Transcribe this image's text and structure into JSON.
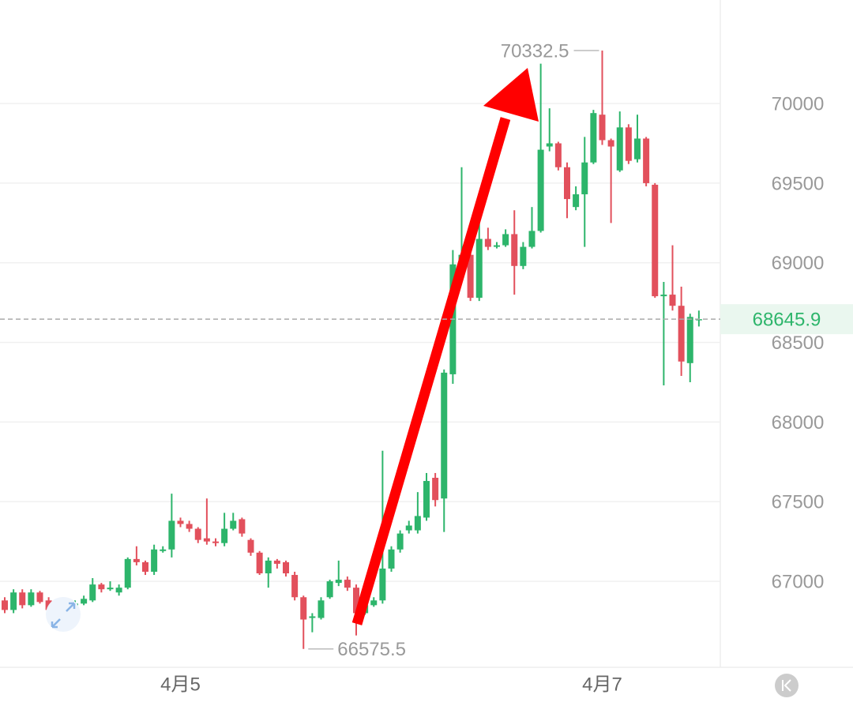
{
  "chart_data": {
    "type": "candlestick",
    "categories": [
      null,
      null,
      null,
      null,
      null,
      null,
      null,
      null,
      null,
      null,
      null,
      null,
      null,
      null,
      null,
      null,
      null,
      null,
      null,
      null,
      "4月5",
      null,
      null,
      null,
      null,
      null,
      null,
      null,
      null,
      null,
      null,
      null,
      null,
      null,
      null,
      null,
      null,
      null,
      null,
      null,
      null,
      null,
      null,
      null,
      null,
      null,
      null,
      null,
      null,
      null,
      null,
      null,
      null,
      null,
      null,
      null,
      null,
      null,
      null,
      null,
      null,
      null,
      null,
      null,
      null,
      null,
      null,
      null,
      "4月7",
      null,
      null,
      null,
      null,
      null,
      null,
      null,
      null,
      null,
      null,
      null
    ],
    "open": [
      66880,
      66820,
      66930,
      66850,
      66930,
      66880,
      66830,
      66810,
      66830,
      66860,
      66880,
      66980,
      66950,
      66930,
      66960,
      67140,
      67120,
      67060,
      67190,
      67200,
      67380,
      67360,
      67330,
      67270,
      67250,
      67240,
      67330,
      67390,
      67260,
      67180,
      67050,
      67130,
      67120,
      67040,
      66900,
      66770,
      66770,
      66900,
      66990,
      67010,
      66960,
      66800,
      66850,
      66880,
      67080,
      67200,
      67320,
      67320,
      67400,
      67650,
      67520,
      68300,
      68990,
      69050,
      68780,
      69150,
      69100,
      69110,
      69180,
      68980,
      69100,
      69200,
      69730,
      69750,
      69600,
      69350,
      69430,
      69630,
      69930,
      69770,
      69580,
      69850,
      69650,
      69780,
      69490,
      68790,
      68800,
      68730,
      68370,
      68640
    ],
    "high": [
      66900,
      66950,
      66950,
      66950,
      66940,
      66900,
      66840,
      66850,
      66880,
      66910,
      67020,
      66990,
      67000,
      66980,
      67150,
      67220,
      67130,
      67230,
      67220,
      67550,
      67400,
      67380,
      67340,
      67520,
      67270,
      67430,
      67430,
      67400,
      67270,
      67190,
      67150,
      67140,
      67130,
      67060,
      66910,
      66800,
      66900,
      67010,
      67130,
      67030,
      66980,
      66860,
      66900,
      67820,
      67220,
      67320,
      67380,
      67560,
      67680,
      67680,
      68330,
      69080,
      69600,
      69100,
      69250,
      69220,
      69130,
      69210,
      69330,
      69130,
      69350,
      70250,
      69970,
      69760,
      69630,
      69480,
      69790,
      69960,
      70332.5,
      69780,
      69950,
      69870,
      69930,
      69790,
      69500,
      68880,
      69110,
      68850,
      68680,
      68700
    ],
    "low": [
      66800,
      66800,
      66830,
      66840,
      66860,
      66800,
      66790,
      66800,
      66760,
      66850,
      66870,
      66930,
      66940,
      66910,
      66950,
      67100,
      67040,
      67040,
      67180,
      67150,
      67340,
      67310,
      67240,
      67230,
      67220,
      67220,
      67320,
      67280,
      67160,
      67040,
      66960,
      67080,
      67030,
      66880,
      66575.5,
      66680,
      66760,
      66890,
      66970,
      66940,
      66660,
      66790,
      66840,
      66860,
      67060,
      67180,
      67300,
      67300,
      67380,
      67470,
      67310,
      68240,
      68980,
      68760,
      68760,
      69080,
      69090,
      69100,
      68800,
      68960,
      69090,
      69190,
      69700,
      69580,
      69280,
      69330,
      69100,
      69620,
      69740,
      69250,
      69570,
      69620,
      69630,
      69480,
      68780,
      68230,
      68700,
      68290,
      68250,
      68600
    ],
    "close": [
      66820,
      66930,
      66850,
      66930,
      66870,
      66820,
      66810,
      66830,
      66860,
      66890,
      66980,
      66950,
      66960,
      66960,
      67140,
      67120,
      67060,
      67200,
      67200,
      67380,
      67360,
      67330,
      67260,
      67250,
      67240,
      67330,
      67380,
      67300,
      67180,
      67050,
      67130,
      67110,
      67050,
      66900,
      66760,
      66780,
      66880,
      67000,
      67010,
      66960,
      66800,
      66850,
      66880,
      67080,
      67200,
      67300,
      67350,
      67410,
      67630,
      67510,
      68310,
      68990,
      69050,
      68780,
      69150,
      69100,
      69110,
      69180,
      68980,
      69100,
      69200,
      69710,
      69750,
      69600,
      69400,
      69430,
      69630,
      69940,
      69770,
      69730,
      69850,
      69640,
      69780,
      69500,
      68790,
      68800,
      68730,
      68380,
      68660,
      68645.9
    ],
    "up_color": "#2db56b",
    "down_color": "#e2505c",
    "ylim": [
      66460,
      70650
    ],
    "yticks": [
      67000,
      67500,
      68000,
      68500,
      69000,
      69500,
      70000
    ],
    "grid": true
  }
}
